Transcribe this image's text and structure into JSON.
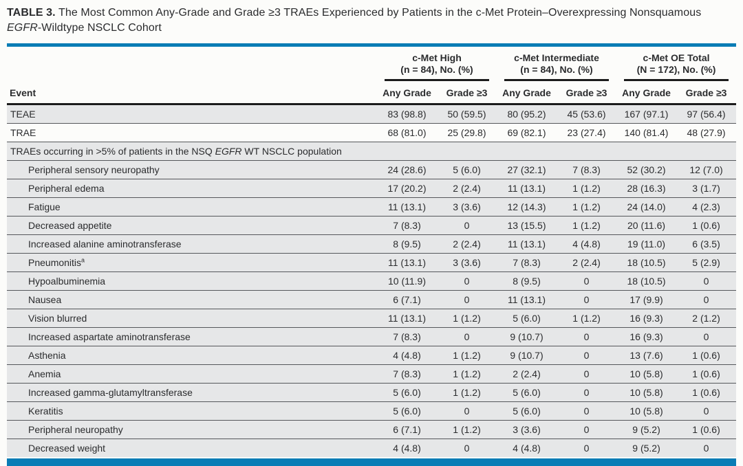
{
  "page": {
    "accent_blue": "#0a7cb5",
    "row_gray": "#e6e7e8",
    "background": "#fcfcfa",
    "rule_black": "#1b1b1b"
  },
  "title": {
    "label": "TABLE 3.",
    "line1": "The Most Common Any-Grade and Grade ≥3 TRAEs Experienced by Patients in the c-Met Protein–Overexpressing Nonsquamous",
    "line2_italic": "EGFR",
    "line2_rest": "-Wildtype NSCLC Cohort"
  },
  "table": {
    "event_header": "Event",
    "groups": [
      {
        "title": "c-Met High",
        "subtitle": "(n = 84), No. (%)"
      },
      {
        "title": "c-Met Intermediate",
        "subtitle": "(n = 84), No. (%)"
      },
      {
        "title": "c-Met OE Total",
        "subtitle": "(N = 172), No. (%)"
      }
    ],
    "col_headers": [
      "Any Grade",
      "Grade ≥3",
      "Any Grade",
      "Grade ≥3",
      "Any Grade",
      "Grade ≥3"
    ],
    "rows": [
      {
        "type": "data",
        "label": "TEAE",
        "indent": false,
        "bg": "gray",
        "values": [
          "83 (98.8)",
          "50 (59.5)",
          "80 (95.2)",
          "45 (53.6)",
          "167 (97.1)",
          "97 (56.4)"
        ]
      },
      {
        "type": "data",
        "label": "TRAE",
        "indent": false,
        "bg": "white",
        "values": [
          "68 (81.0)",
          "25 (29.8)",
          "69 (82.1)",
          "23 (27.4)",
          "140 (81.4)",
          "48 (27.9)"
        ]
      },
      {
        "type": "section",
        "text_before": "TRAEs occurring in >5% of patients in the NSQ ",
        "italic": "EGFR",
        "text_after": " WT NSCLC population",
        "bg": "gray"
      },
      {
        "type": "data",
        "label": "Peripheral sensory neuropathy",
        "indent": true,
        "bg": "gray",
        "values": [
          "24 (28.6)",
          "5 (6.0)",
          "27 (32.1)",
          "7 (8.3)",
          "52 (30.2)",
          "12 (7.0)"
        ]
      },
      {
        "type": "data",
        "label": "Peripheral edema",
        "indent": true,
        "bg": "gray",
        "values": [
          "17 (20.2)",
          "2 (2.4)",
          "11 (13.1)",
          "1 (1.2)",
          "28 (16.3)",
          "3 (1.7)"
        ]
      },
      {
        "type": "data",
        "label": "Fatigue",
        "indent": true,
        "bg": "gray",
        "values": [
          "11 (13.1)",
          "3 (3.6)",
          "12 (14.3)",
          "1 (1.2)",
          "24 (14.0)",
          "4 (2.3)"
        ]
      },
      {
        "type": "data",
        "label": "Decreased appetite",
        "indent": true,
        "bg": "gray",
        "values": [
          "7 (8.3)",
          "0",
          "13 (15.5)",
          "1 (1.2)",
          "20 (11.6)",
          "1 (0.6)"
        ]
      },
      {
        "type": "data",
        "label": "Increased alanine aminotransferase",
        "indent": true,
        "bg": "gray",
        "values": [
          "8 (9.5)",
          "2 (2.4)",
          "11 (13.1)",
          "4 (4.8)",
          "19 (11.0)",
          "6 (3.5)"
        ]
      },
      {
        "type": "data",
        "label": "Pneumonitis",
        "sup": "a",
        "indent": true,
        "bg": "gray",
        "values": [
          "11 (13.1)",
          "3 (3.6)",
          "7 (8.3)",
          "2 (2.4)",
          "18 (10.5)",
          "5 (2.9)"
        ]
      },
      {
        "type": "data",
        "label": "Hypoalbuminemia",
        "indent": true,
        "bg": "gray",
        "values": [
          "10 (11.9)",
          "0",
          "8 (9.5)",
          "0",
          "18 (10.5)",
          "0"
        ]
      },
      {
        "type": "data",
        "label": "Nausea",
        "indent": true,
        "bg": "gray",
        "values": [
          "6 (7.1)",
          "0",
          "11 (13.1)",
          "0",
          "17 (9.9)",
          "0"
        ]
      },
      {
        "type": "data",
        "label": "Vision blurred",
        "indent": true,
        "bg": "gray",
        "values": [
          "11 (13.1)",
          "1 (1.2)",
          "5 (6.0)",
          "1 (1.2)",
          "16 (9.3)",
          "2 (1.2)"
        ]
      },
      {
        "type": "data",
        "label": "Increased aspartate aminotransferase",
        "indent": true,
        "bg": "gray",
        "values": [
          "7 (8.3)",
          "0",
          "9 (10.7)",
          "0",
          "16 (9.3)",
          "0"
        ]
      },
      {
        "type": "data",
        "label": "Asthenia",
        "indent": true,
        "bg": "gray",
        "values": [
          "4 (4.8)",
          "1 (1.2)",
          "9 (10.7)",
          "0",
          "13 (7.6)",
          "1 (0.6)"
        ]
      },
      {
        "type": "data",
        "label": "Anemia",
        "indent": true,
        "bg": "gray",
        "values": [
          "7 (8.3)",
          "1 (1.2)",
          "2 (2.4)",
          "0",
          "10 (5.8)",
          "1 (0.6)"
        ]
      },
      {
        "type": "data",
        "label": "Increased gamma-glutamyltransferase",
        "indent": true,
        "bg": "gray",
        "values": [
          "5 (6.0)",
          "1 (1.2)",
          "5 (6.0)",
          "0",
          "10 (5.8)",
          "1 (0.6)"
        ]
      },
      {
        "type": "data",
        "label": "Keratitis",
        "indent": true,
        "bg": "gray",
        "values": [
          "5 (6.0)",
          "0",
          "5 (6.0)",
          "0",
          "10 (5.8)",
          "0"
        ]
      },
      {
        "type": "data",
        "label": "Peripheral neuropathy",
        "indent": true,
        "bg": "gray",
        "values": [
          "6 (7.1)",
          "1 (1.2)",
          "3 (3.6)",
          "0",
          "9 (5.2)",
          "1 (0.6)"
        ]
      },
      {
        "type": "data",
        "label": "Decreased weight",
        "indent": true,
        "bg": "gray",
        "values": [
          "4 (4.8)",
          "0",
          "4 (4.8)",
          "0",
          "9 (5.2)",
          "0"
        ]
      }
    ]
  }
}
